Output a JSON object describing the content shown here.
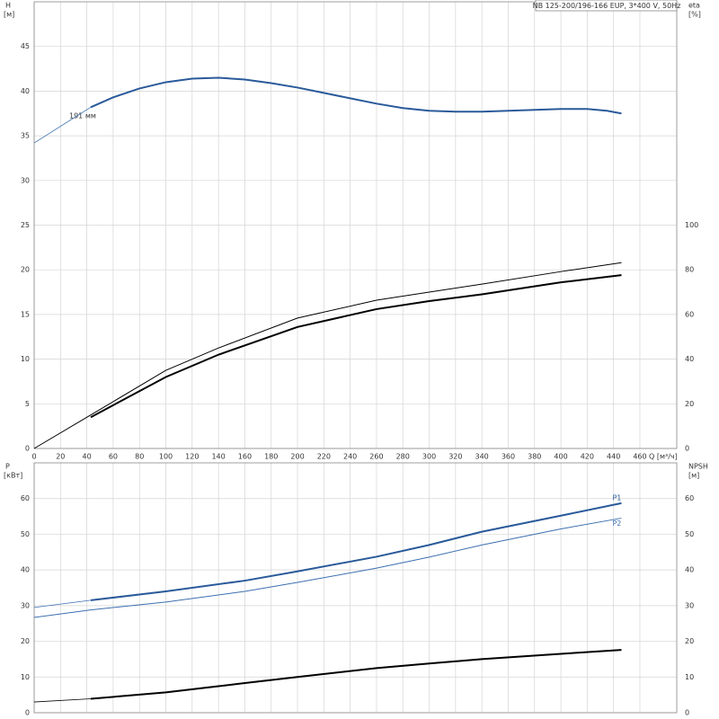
{
  "chart_data": [
    {
      "type": "line",
      "title": "NB 125-200/196-166 EUP, 3*400 V, 50Hz",
      "xlabel": "Q [м³/ч]",
      "ylabel": "H",
      "yunit": "[м]",
      "y2label": "eta",
      "y2unit": "[%]",
      "annotation": "191 мм",
      "xlim": [
        0,
        488
      ],
      "xticks": [
        0,
        20,
        40,
        60,
        80,
        100,
        120,
        140,
        160,
        180,
        200,
        220,
        240,
        260,
        280,
        300,
        320,
        340,
        360,
        380,
        400,
        420,
        440,
        460
      ],
      "ylim": [
        0,
        50
      ],
      "yticks": [
        0,
        5,
        10,
        15,
        20,
        25,
        30,
        35,
        40,
        45
      ],
      "y2lim": [
        0,
        200
      ],
      "y2ticks": [
        0,
        20,
        40,
        60,
        80,
        100
      ],
      "grid": true,
      "series": [
        {
          "color": "#2a5a9a",
          "width": 2,
          "x": [
            43,
            60,
            80,
            100,
            120,
            140,
            160,
            180,
            200,
            220,
            240,
            260,
            280,
            300,
            320,
            340,
            360,
            380,
            400,
            420,
            435,
            446
          ],
          "values": [
            38.2,
            39.3,
            40.3,
            41,
            41.4,
            41.5,
            41.3,
            40.9,
            40.4,
            39.8,
            39.2,
            38.6,
            38.1,
            37.8,
            37.7,
            37.7,
            37.8,
            37.9,
            38,
            38,
            37.8,
            37.5
          ]
        },
        {
          "color": "#3d6fb0",
          "width": 0.8,
          "x": [
            0,
            43
          ],
          "values": [
            34.2,
            38.2
          ]
        },
        {
          "color": "#000000",
          "width": 2,
          "axis": "y2",
          "x": [
            43,
            100,
            140,
            200,
            260,
            300,
            340,
            400,
            446
          ],
          "values": [
            14,
            32,
            42,
            54.4,
            62.4,
            66,
            69,
            74.4,
            77.6
          ]
        },
        {
          "color": "#000000",
          "width": 1,
          "axis": "y2",
          "x": [
            0,
            43,
            100,
            140,
            200,
            260,
            300,
            340,
            400,
            446
          ],
          "values": [
            0,
            15,
            35,
            45,
            58.4,
            66.4,
            70,
            73.6,
            79.2,
            83.2
          ]
        }
      ]
    },
    {
      "type": "line",
      "ylabel": "P",
      "yunit": "[кВт]",
      "y2label": "NPSH",
      "y2unit": "[м]",
      "xlim": [
        0,
        488
      ],
      "ylim": [
        0,
        70
      ],
      "yticks": [
        0,
        10,
        20,
        30,
        40,
        50,
        60
      ],
      "y2lim": [
        0,
        70
      ],
      "y2ticks": [
        0,
        10,
        20,
        30,
        40,
        50,
        60
      ],
      "grid": true,
      "series": [
        {
          "name": "P1",
          "color": "#2a5a9a",
          "width": 2,
          "x": [
            43,
            100,
            160,
            200,
            260,
            300,
            340,
            400,
            446
          ],
          "values": [
            31.5,
            34,
            37,
            39.6,
            43.7,
            47,
            50.7,
            55.2,
            58.7
          ]
        },
        {
          "color": "#3d6fb0",
          "width": 0.8,
          "x": [
            0,
            43
          ],
          "values": [
            29.5,
            31.5
          ]
        },
        {
          "name": "P2",
          "color": "#3d6fb0",
          "width": 1,
          "x": [
            0,
            43,
            100,
            160,
            200,
            260,
            300,
            340,
            400,
            446
          ],
          "values": [
            26.7,
            28.8,
            31,
            34,
            36.5,
            40.5,
            43.6,
            47,
            51.5,
            54.5
          ]
        },
        {
          "color": "#000000",
          "width": 2,
          "axis": "y2",
          "x": [
            43,
            100,
            160,
            200,
            260,
            300,
            340,
            400,
            446
          ],
          "values": [
            3.9,
            5.7,
            8.3,
            10,
            12.5,
            13.8,
            15,
            16.5,
            17.6
          ]
        },
        {
          "color": "#000000",
          "width": 0.8,
          "axis": "y2",
          "x": [
            0,
            43
          ],
          "values": [
            3,
            3.9
          ]
        }
      ]
    }
  ]
}
